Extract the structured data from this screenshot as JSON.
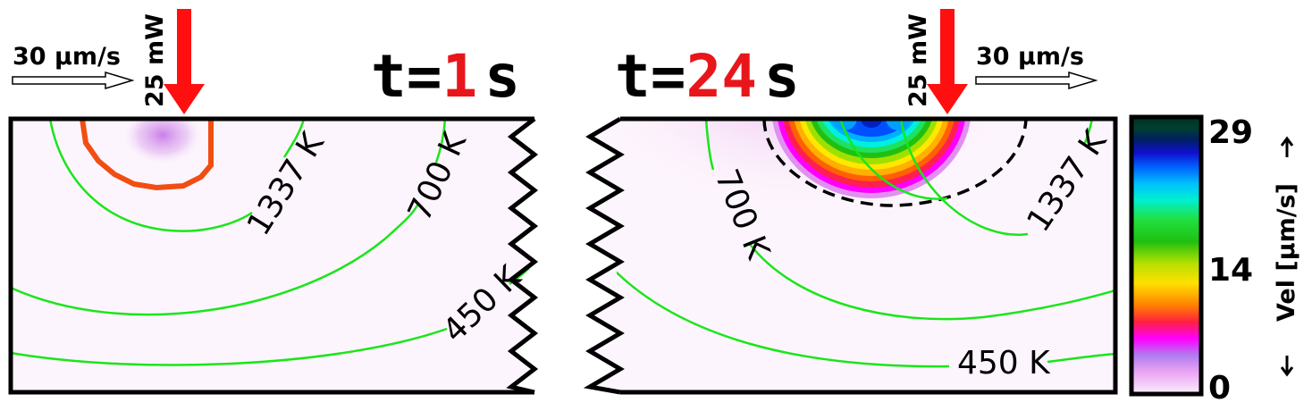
{
  "left_panel": {
    "time_prefix": "t=",
    "time_value": "1",
    "time_unit": "s",
    "scan_speed": "30 µm/s",
    "laser_power": "25 mW",
    "isotherms": [
      "1337 K",
      "700 K",
      "450 K"
    ]
  },
  "right_panel": {
    "time_prefix": "t=",
    "time_value": "24",
    "time_unit": "s",
    "scan_speed": "30 µm/s",
    "laser_power": "25 mW",
    "isotherms": [
      "700 K",
      "1337 K",
      "450 K"
    ]
  },
  "colorbar": {
    "ticks": [
      "29",
      "14",
      "0"
    ],
    "label": "Vel [µm/s]"
  },
  "colors": {
    "laser_arrow": "#ff0f0f",
    "time_highlight": "#e8161b",
    "isotherm": "#19e619",
    "melt_boundary": "#f24d12",
    "background_field": "#fdf5fd"
  }
}
